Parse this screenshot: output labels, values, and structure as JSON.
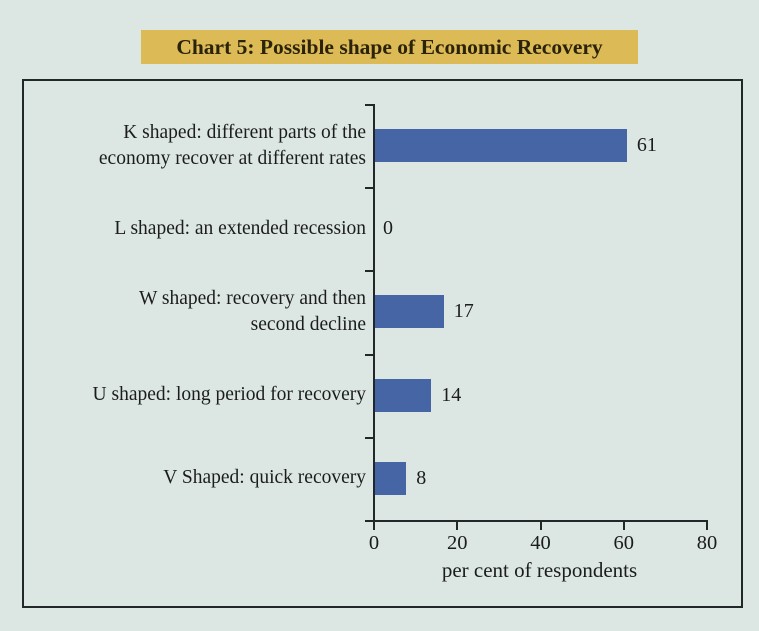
{
  "title": "Chart 5: Possible shape of Economic Recovery",
  "chart_data": {
    "type": "bar",
    "orientation": "horizontal",
    "title": "Chart 5: Possible shape of Economic Recovery",
    "categories": [
      "K shaped: different parts of the\neconomy recover at different rates",
      "L shaped: an extended recession",
      "W shaped: recovery and then\nsecond decline",
      "U shaped: long period for recovery",
      "V Shaped: quick recovery"
    ],
    "values": [
      61,
      0,
      17,
      14,
      8
    ],
    "data_labels": [
      "61",
      "0",
      "17",
      "14",
      "8"
    ],
    "xlabel": "per cent of respondents",
    "xticks": [
      "0",
      "20",
      "40",
      "60",
      "80"
    ],
    "xtick_values": [
      0,
      20,
      40,
      60,
      80
    ],
    "xlim": [
      0,
      80
    ],
    "grid": false,
    "legend": false
  },
  "colors": {
    "background": "#dce7e4",
    "title_bg": "#dcba55",
    "title_text": "#2b2309",
    "text": "#1c1c1c",
    "axis": "#22272a",
    "bar": "#4565a4"
  }
}
